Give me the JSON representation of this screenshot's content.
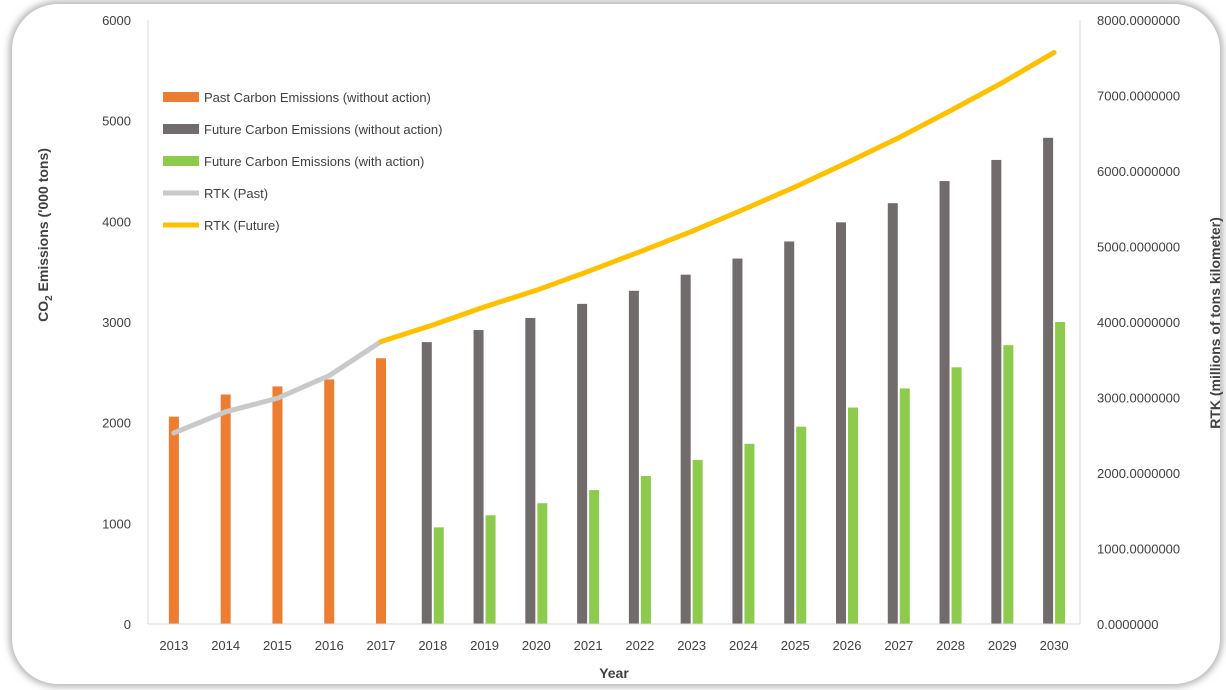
{
  "chart_data": {
    "type": "bar",
    "categories": [
      "2013",
      "2014",
      "2015",
      "2016",
      "2017",
      "2018",
      "2019",
      "2020",
      "2021",
      "2022",
      "2023",
      "2024",
      "2025",
      "2026",
      "2027",
      "2028",
      "2029",
      "2030"
    ],
    "xlabel": "Year",
    "ylabel": "CO2 Emissions ('000 tons)",
    "ylabel_parts": {
      "pre": "CO",
      "sub": "2",
      "post": " Emissions ('000 tons)"
    },
    "y2label": "RTK (millions of tons kilometer)",
    "ylim": [
      0,
      6000
    ],
    "y_ticks": [
      "0",
      "1000",
      "2000",
      "3000",
      "4000",
      "5000",
      "6000"
    ],
    "y2lim": [
      0,
      8000
    ],
    "y2_ticks": [
      "0.0000000",
      "1000.0000000",
      "2000.0000000",
      "3000.0000000",
      "4000.0000000",
      "5000.0000000",
      "6000.0000000",
      "7000.0000000",
      "8000.0000000"
    ],
    "grid": false,
    "legend_position": "top-left",
    "series": [
      {
        "name": "Past Carbon Emissions (without action)",
        "kind": "bar",
        "axis": "left",
        "color": "#ED7D31",
        "values": [
          2060,
          2280,
          2360,
          2430,
          2640,
          null,
          null,
          null,
          null,
          null,
          null,
          null,
          null,
          null,
          null,
          null,
          null,
          null
        ]
      },
      {
        "name": "Future Carbon Emissions (without action)",
        "kind": "bar",
        "axis": "left",
        "color": "#716B6B",
        "values": [
          null,
          null,
          null,
          null,
          null,
          2800,
          2920,
          3040,
          3180,
          3310,
          3470,
          3630,
          3800,
          3990,
          4180,
          4400,
          4610,
          4830
        ]
      },
      {
        "name": "Future Carbon Emissions (with action)",
        "kind": "bar",
        "axis": "left",
        "color": "#8CCB4C",
        "values": [
          null,
          null,
          null,
          null,
          null,
          960,
          1080,
          1200,
          1330,
          1470,
          1630,
          1790,
          1960,
          2150,
          2340,
          2550,
          2770,
          3000
        ]
      },
      {
        "name": "RTK (Past)",
        "kind": "line",
        "axis": "right",
        "color": "#C9C9C9",
        "values": [
          2530,
          2810,
          2990,
          3290,
          3740,
          null,
          null,
          null,
          null,
          null,
          null,
          null,
          null,
          null,
          null,
          null,
          null,
          null
        ]
      },
      {
        "name": "RTK (Future)",
        "kind": "line",
        "axis": "right",
        "color": "#FFC000",
        "values": [
          null,
          null,
          null,
          null,
          3740,
          3960,
          4200,
          4420,
          4670,
          4930,
          5200,
          5490,
          5790,
          6110,
          6440,
          6800,
          7170,
          7570
        ]
      }
    ]
  }
}
